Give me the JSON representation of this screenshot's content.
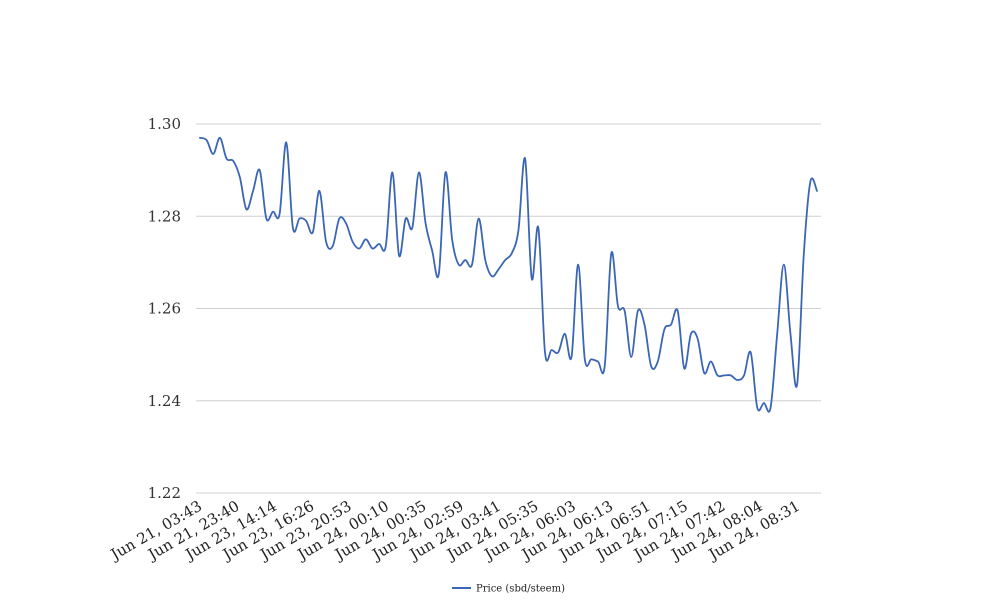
{
  "chart_data": {
    "type": "line",
    "title": "",
    "xlabel": "",
    "ylabel": "",
    "ylim": [
      1.22,
      1.3
    ],
    "yticks": [
      "1.22",
      "1.24",
      "1.26",
      "1.28",
      "1.30"
    ],
    "xtick_labels": [
      "Jun 21, 03:43",
      "Jun 21, 23:40",
      "Jun 23, 14:14",
      "Jun 23, 16:26",
      "Jun 23, 20:53",
      "Jun 24, 00:10",
      "Jun 24, 00:35",
      "Jun 24, 02:59",
      "Jun 24, 03:41",
      "Jun 24, 05:35",
      "Jun 24, 06:03",
      "Jun 24, 06:13",
      "Jun 24, 06:51",
      "Jun 24, 07:15",
      "Jun 24, 07:42",
      "Jun 24, 08:04",
      "Jun 24, 08:31"
    ],
    "grid": true,
    "legend_position": "bottom",
    "color": "#3b66b5",
    "series": [
      {
        "name": "Price (sbd/steem)",
        "values": [
          1.297,
          1.2965,
          1.2935,
          1.297,
          1.2925,
          1.292,
          1.2885,
          1.2815,
          1.2855,
          1.29,
          1.2795,
          1.281,
          1.2805,
          1.296,
          1.2775,
          1.2795,
          1.279,
          1.2765,
          1.2855,
          1.2745,
          1.2735,
          1.2795,
          1.2785,
          1.2745,
          1.273,
          1.275,
          1.273,
          1.274,
          1.2735,
          1.2895,
          1.2715,
          1.2795,
          1.2775,
          1.2895,
          1.2785,
          1.2725,
          1.2675,
          1.2895,
          1.275,
          1.2695,
          1.2705,
          1.2695,
          1.2795,
          1.2705,
          1.267,
          1.2685,
          1.2705,
          1.272,
          1.277,
          1.2925,
          1.2665,
          1.2775,
          1.2505,
          1.251,
          1.2505,
          1.2545,
          1.2495,
          1.2695,
          1.249,
          1.249,
          1.2485,
          1.2475,
          1.272,
          1.2605,
          1.2595,
          1.2495,
          1.2595,
          1.2565,
          1.2475,
          1.2485,
          1.2555,
          1.2565,
          1.2595,
          1.247,
          1.2545,
          1.2535,
          1.246,
          1.2485,
          1.2455,
          1.2455,
          1.2455,
          1.2445,
          1.2455,
          1.2505,
          1.2385,
          1.2395,
          1.2385,
          1.2545,
          1.2695,
          1.2545,
          1.2435,
          1.2715,
          1.2875,
          1.2855
        ]
      }
    ]
  }
}
